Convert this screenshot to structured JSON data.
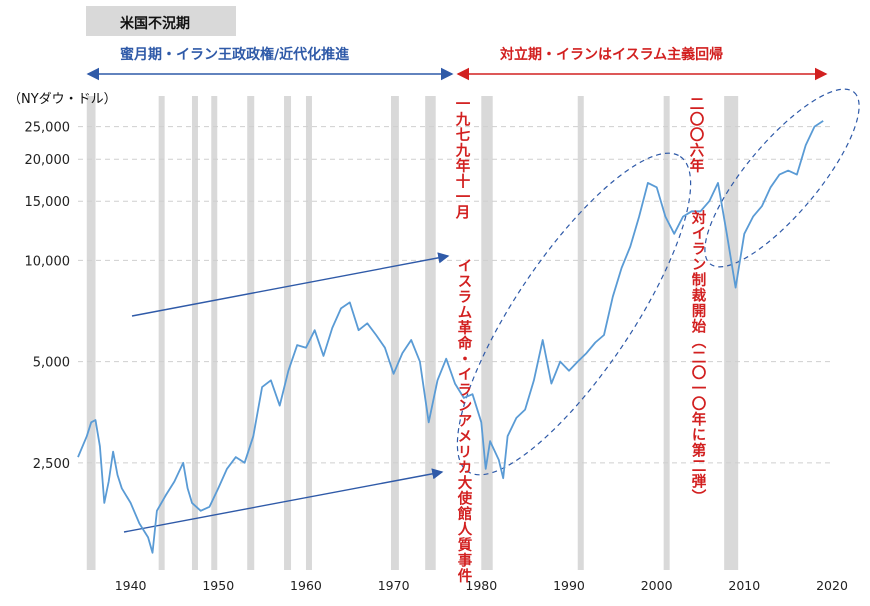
{
  "legend": {
    "recession_label": "米国不況期"
  },
  "eras": {
    "left": "蜜月期・イラン王政政権/近代化推進",
    "right": "対立期・イランはイスラム主義回帰"
  },
  "annotations": {
    "nov1979": "一九七九年十一月",
    "hostage": "イスラム革命・イランアメリカ大使館人質事件",
    "y2006": "二〇〇六年",
    "sanctions": "対イラン制裁開始（二〇一〇年に第二弾）"
  },
  "colors": {
    "line": "#5a9bd5",
    "recession": "#d9d9d9",
    "blue_arrow": "#2f5aa8",
    "red_arrow": "#d22020",
    "ellipse": "#2f5aa8"
  },
  "chart_data": {
    "type": "line",
    "ylabel": "（NYダウ・ドル）",
    "yscale": "log",
    "ylim": [
      1200,
      30000
    ],
    "xlim": [
      1934,
      2020
    ],
    "yticks": [
      2500,
      5000,
      10000,
      15000,
      20000,
      25000
    ],
    "ytick_labels": [
      "2,500",
      "5,000",
      "10,000",
      "15,000",
      "20,000",
      "25,000"
    ],
    "xticks": [
      1940,
      1950,
      1960,
      1970,
      1980,
      1990,
      2000,
      2010,
      2020
    ],
    "xtick_labels": [
      "1940",
      "1950",
      "1960",
      "1970",
      "1980",
      "1990",
      "2000",
      "2010",
      "2020"
    ],
    "grid": "horizontal dashed",
    "recessions": [
      [
        1935,
        1936
      ],
      [
        1943.2,
        1943.8
      ],
      [
        1947,
        1947.6
      ],
      [
        1949.2,
        1949.8
      ],
      [
        1953.3,
        1954.1
      ],
      [
        1957.5,
        1958.3
      ],
      [
        1960,
        1960.6
      ],
      [
        1969.7,
        1970.6
      ],
      [
        1973.6,
        1974.8
      ],
      [
        1980,
        1981.3
      ],
      [
        1991,
        1991.6
      ],
      [
        2000.8,
        2001.4
      ],
      [
        2007.7,
        2009.3
      ]
    ],
    "series": [
      {
        "x": [
          1934,
          1935,
          1935.5,
          1936,
          1936.5,
          1937,
          1937.5,
          1938,
          1938.5,
          1939,
          1940,
          1941,
          1942,
          1942.5,
          1943,
          1944,
          1945,
          1946,
          1946.5,
          1947,
          1948,
          1949,
          1950,
          1951,
          1952,
          1953,
          1954,
          1955,
          1956,
          1957,
          1958,
          1959,
          1960,
          1961,
          1962,
          1963,
          1964,
          1965,
          1966,
          1967,
          1968,
          1969,
          1970,
          1971,
          1972,
          1973,
          1974,
          1975,
          1976,
          1977,
          1978,
          1979,
          1980,
          1980.5,
          1981,
          1982,
          1982.5,
          1983,
          1984,
          1985,
          1986,
          1987,
          1988,
          1989,
          1990,
          1991,
          1992,
          1993,
          1994,
          1995,
          1996,
          1997,
          1998,
          1999,
          2000,
          2001,
          2002,
          2003,
          2004,
          2005,
          2006,
          2007,
          2008,
          2009,
          2010,
          2011,
          2012,
          2013,
          2014,
          2015,
          2016,
          2017,
          2018,
          2019
        ],
        "y": [
          2600,
          3000,
          3300,
          3350,
          2800,
          1900,
          2200,
          2700,
          2300,
          2100,
          1900,
          1650,
          1500,
          1350,
          1800,
          2000,
          2200,
          2500,
          2100,
          1900,
          1800,
          1850,
          2100,
          2400,
          2600,
          2500,
          3000,
          4200,
          4400,
          3700,
          4700,
          5600,
          5500,
          6200,
          5200,
          6300,
          7200,
          7500,
          6200,
          6500,
          6000,
          5500,
          4600,
          5300,
          5800,
          5000,
          3300,
          4400,
          5100,
          4300,
          3900,
          4000,
          3300,
          2400,
          2900,
          2550,
          2250,
          3000,
          3400,
          3600,
          4400,
          5800,
          4300,
          5000,
          4700,
          5000,
          5300,
          5700,
          6000,
          7800,
          9500,
          11000,
          13500,
          17000,
          16500,
          13500,
          12000,
          13500,
          14000,
          14000,
          15000,
          17000,
          12000,
          8300,
          12000,
          13500,
          14500,
          16500,
          18000,
          18500,
          18000,
          22000,
          25000,
          26000
        ]
      }
    ]
  }
}
